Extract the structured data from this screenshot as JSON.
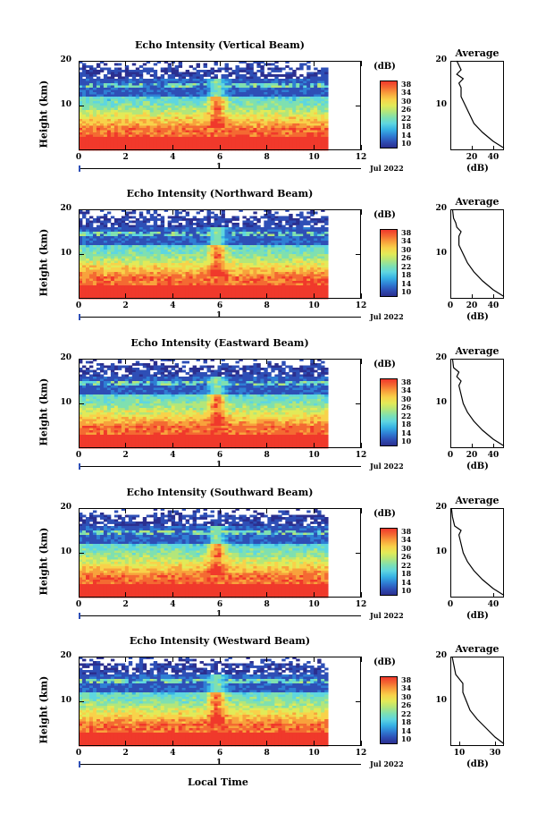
{
  "xlabel": "Local Time",
  "panels": [
    {
      "title": "Echo Intensity (Vertical Beam)",
      "ylabel": "Height (km)",
      "yticks": [
        "20",
        "10"
      ],
      "xticks": [
        "0",
        "2",
        "4",
        "6",
        "8",
        "10",
        "12"
      ],
      "date_label": "Jul 2022",
      "date_tick": "1",
      "cbar_title": "(dB)",
      "cbar_ticks": [
        "38",
        "34",
        "30",
        "26",
        "22",
        "18",
        "14",
        "10"
      ],
      "avg_title": "Average",
      "avg_yticks": [
        "20",
        "10"
      ],
      "avg_xticks": [
        "20",
        "40"
      ],
      "avg_xlabel": "(dB)"
    },
    {
      "title": "Echo Intensity (Northward Beam)",
      "ylabel": "Height (km)",
      "yticks": [
        "20",
        "10"
      ],
      "xticks": [
        "0",
        "2",
        "4",
        "6",
        "8",
        "10",
        "12"
      ],
      "date_label": "Jul 2022",
      "date_tick": "1",
      "cbar_title": "(dB)",
      "cbar_ticks": [
        "38",
        "34",
        "30",
        "26",
        "22",
        "18",
        "14",
        "10"
      ],
      "avg_title": "Average",
      "avg_yticks": [
        "20",
        "10"
      ],
      "avg_xticks": [
        "0",
        "20",
        "40"
      ],
      "avg_xlabel": "(dB)"
    },
    {
      "title": "Echo Intensity (Eastward Beam)",
      "ylabel": "Height (km)",
      "yticks": [
        "20",
        "10"
      ],
      "xticks": [
        "0",
        "2",
        "4",
        "6",
        "8",
        "10",
        "12"
      ],
      "date_label": "Jul 2022",
      "date_tick": "1",
      "cbar_title": "(dB)",
      "cbar_ticks": [
        "38",
        "34",
        "30",
        "26",
        "22",
        "18",
        "14",
        "10"
      ],
      "avg_title": "Average",
      "avg_yticks": [
        "20",
        "10"
      ],
      "avg_xticks": [
        "0",
        "20",
        "40"
      ],
      "avg_xlabel": "(dB)"
    },
    {
      "title": "Echo Intensity (Southward Beam)",
      "ylabel": "Height (km)",
      "yticks": [
        "20",
        "10"
      ],
      "xticks": [
        "0",
        "2",
        "4",
        "6",
        "8",
        "10",
        "12"
      ],
      "date_label": "Jul 2022",
      "date_tick": "1",
      "cbar_title": "(dB)",
      "cbar_ticks": [
        "38",
        "34",
        "30",
        "26",
        "22",
        "18",
        "14",
        "10"
      ],
      "avg_title": "Average",
      "avg_yticks": [
        "20",
        "10"
      ],
      "avg_xticks": [
        "0",
        "40"
      ],
      "avg_xlabel": "(dB)"
    },
    {
      "title": "Echo Intensity (Westward Beam)",
      "ylabel": "Height (km)",
      "yticks": [
        "20",
        "10"
      ],
      "xticks": [
        "0",
        "2",
        "4",
        "6",
        "8",
        "10",
        "12"
      ],
      "date_label": "Jul 2022",
      "date_tick": "1",
      "cbar_title": "(dB)",
      "cbar_ticks": [
        "38",
        "34",
        "30",
        "26",
        "22",
        "18",
        "14",
        "10"
      ],
      "avg_title": "Average",
      "avg_yticks": [
        "20",
        "10"
      ],
      "avg_xticks": [
        "10",
        "30"
      ],
      "avg_xlabel": "(dB)"
    }
  ],
  "chart_data": [
    {
      "type": "heatmap",
      "title": "Echo Intensity (Vertical Beam)",
      "xlabel": "Local Time",
      "ylabel": "Height (km)",
      "xlim": [
        0,
        12
      ],
      "ylim": [
        0,
        20
      ],
      "data_extent_x": [
        0,
        10.6
      ],
      "colorbar_label": "(dB)",
      "colorbar_range": [
        10,
        38
      ]
    },
    {
      "type": "line",
      "title": "Average",
      "xlabel": "(dB)",
      "ylim": [
        0,
        20
      ],
      "xlim": [
        0,
        50
      ],
      "x": [
        50,
        40,
        30,
        22,
        18,
        14,
        10,
        10,
        8,
        12,
        6,
        10,
        8,
        6
      ],
      "y": [
        0.5,
        2,
        4,
        6,
        8,
        10,
        12,
        14,
        15,
        16,
        17,
        18,
        19,
        20
      ]
    },
    {
      "type": "heatmap",
      "title": "Echo Intensity (Northward Beam)",
      "xlabel": "Local Time",
      "ylabel": "Height (km)",
      "xlim": [
        0,
        12
      ],
      "ylim": [
        0,
        20
      ],
      "data_extent_x": [
        0,
        10.6
      ],
      "colorbar_label": "(dB)",
      "colorbar_range": [
        10,
        38
      ]
    },
    {
      "type": "line",
      "title": "Average",
      "xlabel": "(dB)",
      "ylim": [
        0,
        20
      ],
      "xlim": [
        0,
        50
      ],
      "x": [
        50,
        40,
        30,
        22,
        16,
        12,
        8,
        8,
        10,
        6,
        5,
        3,
        2
      ],
      "y": [
        0.5,
        2,
        4,
        6,
        8,
        10,
        12,
        14,
        15,
        16,
        17,
        18,
        20
      ]
    },
    {
      "type": "heatmap",
      "title": "Echo Intensity (Eastward Beam)",
      "xlabel": "Local Time",
      "ylabel": "Height (km)",
      "xlim": [
        0,
        12
      ],
      "ylim": [
        0,
        20
      ],
      "data_extent_x": [
        0,
        10.6
      ],
      "colorbar_label": "(dB)",
      "colorbar_range": [
        10,
        38
      ]
    },
    {
      "type": "line",
      "title": "Average",
      "xlabel": "(dB)",
      "ylim": [
        0,
        20
      ],
      "xlim": [
        0,
        50
      ],
      "x": [
        50,
        40,
        30,
        22,
        16,
        12,
        10,
        8,
        10,
        6,
        8,
        3,
        2
      ],
      "y": [
        0.5,
        2,
        4,
        6,
        8,
        10,
        12,
        14,
        15,
        16,
        17,
        18,
        20
      ]
    },
    {
      "type": "heatmap",
      "title": "Echo Intensity (Southward Beam)",
      "xlabel": "Local Time",
      "ylabel": "Height (km)",
      "xlim": [
        0,
        12
      ],
      "ylim": [
        0,
        20
      ],
      "data_extent_x": [
        0,
        10.6
      ],
      "colorbar_label": "(dB)",
      "colorbar_range": [
        10,
        38
      ]
    },
    {
      "type": "line",
      "title": "Average",
      "xlabel": "(dB)",
      "ylim": [
        0,
        20
      ],
      "xlim": [
        0,
        50
      ],
      "x": [
        50,
        40,
        30,
        22,
        16,
        12,
        10,
        8,
        10,
        4,
        2,
        1
      ],
      "y": [
        0.5,
        2,
        4,
        6,
        8,
        10,
        12,
        14,
        15,
        16,
        18,
        20
      ]
    },
    {
      "type": "heatmap",
      "title": "Echo Intensity (Westward Beam)",
      "xlabel": "Local Time",
      "ylabel": "Height (km)",
      "xlim": [
        0,
        12
      ],
      "ylim": [
        0,
        20
      ],
      "data_extent_x": [
        0,
        10.6
      ],
      "colorbar_label": "(dB)",
      "colorbar_range": [
        10,
        38
      ]
    },
    {
      "type": "line",
      "title": "Average",
      "xlabel": "(dB)",
      "ylim": [
        0,
        20
      ],
      "xlim": [
        5,
        35
      ],
      "x": [
        35,
        30,
        25,
        20,
        16,
        14,
        12,
        12,
        10,
        8,
        7,
        6
      ],
      "y": [
        0.5,
        2,
        4,
        6,
        8,
        10,
        12,
        14,
        15,
        16,
        18,
        20
      ]
    }
  ]
}
